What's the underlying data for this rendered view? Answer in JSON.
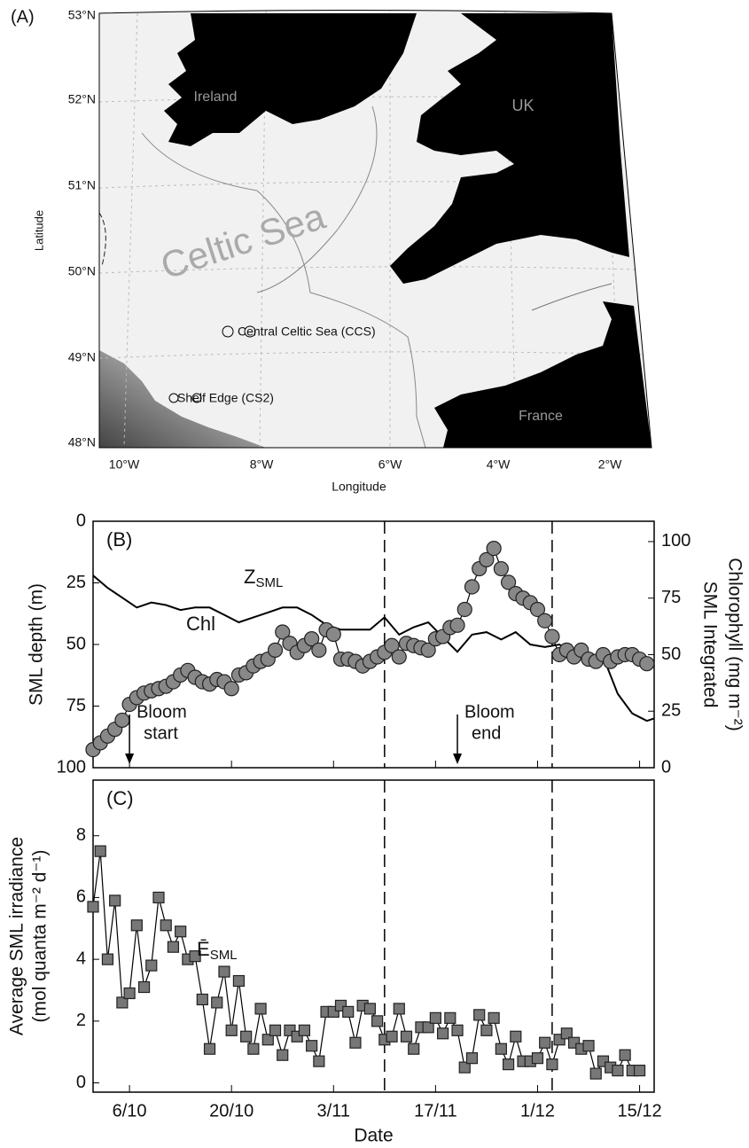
{
  "map": {
    "panel_label": "(A)",
    "ylabel": "Latitude",
    "xlabel": "Longitude",
    "lat_labels": [
      "53°N",
      "52°N",
      "51°N",
      "50°N",
      "49°N",
      "48°N"
    ],
    "lon_labels": [
      "10°W",
      "8°W",
      "6°W",
      "4°W",
      "2°W"
    ],
    "places": [
      "Ireland",
      "UK",
      "France",
      "Celtic Sea"
    ],
    "stations": [
      "Central Celtic Sea (CCS)",
      "Shelf Edge (CS2)"
    ]
  },
  "chart_data": [
    {
      "type": "line",
      "panel_label": "(B)",
      "ylabel": "SML depth (m)",
      "y2label": [
        "SML Integrated",
        "Chlorophyll (mg m⁻²)"
      ],
      "xlim": [
        "1/10",
        "17/12"
      ],
      "xticks": [
        "6/10",
        "20/10",
        "3/11",
        "17/11",
        "1/12",
        "15/12"
      ],
      "show_xtick_labels": false,
      "ylim": [
        100,
        0
      ],
      "yticks": [
        0,
        25,
        50,
        75,
        100
      ],
      "y2lim": [
        0,
        109
      ],
      "y2ticks": [
        0,
        25,
        50,
        75,
        100
      ],
      "vlines": [
        "10/11",
        "3/12"
      ],
      "annotations": [
        {
          "x": "6/10",
          "text": [
            "Bloom",
            "start"
          ]
        },
        {
          "x": "20/11",
          "text": [
            "Bloom",
            "end"
          ]
        }
      ],
      "x": [
        "1/10",
        "2/10",
        "3/10",
        "4/10",
        "5/10",
        "6/10",
        "7/10",
        "8/10",
        "9/10",
        "10/10",
        "11/10",
        "12/10",
        "13/10",
        "14/10",
        "15/10",
        "16/10",
        "17/10",
        "18/10",
        "19/10",
        "20/10",
        "21/10",
        "22/10",
        "23/10",
        "24/10",
        "25/10",
        "26/10",
        "27/10",
        "28/10",
        "29/10",
        "30/10",
        "31/10",
        "1/11",
        "2/11",
        "3/11",
        "4/11",
        "5/11",
        "6/11",
        "7/11",
        "8/11",
        "9/11",
        "10/11",
        "11/11",
        "12/11",
        "13/11",
        "14/11",
        "15/11",
        "16/11",
        "17/11",
        "18/11",
        "19/11",
        "20/11",
        "21/11",
        "22/11",
        "23/11",
        "24/11",
        "25/11",
        "26/11",
        "27/11",
        "28/11",
        "29/11",
        "30/11",
        "1/12",
        "2/12",
        "3/12",
        "4/12",
        "5/12",
        "6/12",
        "7/12",
        "8/12",
        "9/12",
        "10/12",
        "11/12",
        "12/12",
        "13/12",
        "14/12",
        "15/12",
        "16/12"
      ],
      "series": [
        {
          "name": "Z",
          "subscript": "SML",
          "color": "#111111",
          "marker": "none",
          "x": [
            "1/10",
            "3/10",
            "5/10",
            "7/10",
            "9/10",
            "11/10",
            "13/10",
            "15/10",
            "17/10",
            "19/10",
            "21/10",
            "23/10",
            "25/10",
            "27/10",
            "29/10",
            "31/10",
            "2/11",
            "4/11",
            "6/11",
            "8/11",
            "10/11",
            "12/11",
            "14/11",
            "16/11",
            "18/11",
            "20/11",
            "22/11",
            "24/11",
            "26/11",
            "28/11",
            "30/11",
            "2/12",
            "4/12",
            "6/12",
            "8/12",
            "10/12",
            "12/12",
            "14/12",
            "16/12",
            "17/12"
          ],
          "values": [
            22,
            27,
            31,
            35,
            33,
            34,
            36,
            35,
            35,
            38,
            41,
            39,
            37,
            35,
            35,
            38,
            42,
            44,
            44,
            44,
            39,
            46,
            43,
            41,
            47,
            53,
            46,
            45,
            48,
            45,
            50,
            51,
            50,
            54,
            54,
            55,
            70,
            78,
            81,
            80
          ]
        },
        {
          "name": "Chl",
          "color": "#888888",
          "marker": "circle",
          "axis": "y2",
          "values": [
            8,
            11,
            14,
            17,
            21,
            28,
            31,
            33,
            34,
            35,
            36,
            38,
            41,
            43,
            40,
            38,
            37,
            39,
            38,
            35,
            41,
            42,
            45,
            47,
            48,
            52,
            60,
            55,
            51,
            54,
            57,
            52,
            61,
            59,
            48,
            48,
            47,
            45,
            47,
            49,
            51,
            54,
            49,
            55,
            54,
            53,
            52,
            57,
            58,
            62,
            63,
            70,
            80,
            88,
            92,
            97,
            88,
            82,
            77,
            75,
            73,
            70,
            65,
            58,
            50,
            52,
            49,
            52,
            48,
            47,
            50,
            47,
            49,
            50,
            50,
            48,
            46
          ]
        }
      ]
    },
    {
      "type": "line",
      "panel_label": "(C)",
      "ylabel": [
        "Average SML irradiance",
        "(mol quanta m⁻² d⁻¹)"
      ],
      "xlabel": "Date",
      "xlim": [
        "1/10",
        "17/12"
      ],
      "xticks": [
        "6/10",
        "20/10",
        "3/11",
        "17/11",
        "1/12",
        "15/12"
      ],
      "show_xtick_labels": true,
      "ylim": [
        -0.3,
        9.8
      ],
      "yticks": [
        0,
        2,
        4,
        6,
        8
      ],
      "vlines": [
        "10/11",
        "3/12"
      ],
      "x": [
        "1/10",
        "2/10",
        "3/10",
        "4/10",
        "5/10",
        "6/10",
        "7/10",
        "8/10",
        "9/10",
        "10/10",
        "11/10",
        "12/10",
        "13/10",
        "14/10",
        "15/10",
        "16/10",
        "17/10",
        "18/10",
        "19/10",
        "20/10",
        "21/10",
        "22/10",
        "23/10",
        "24/10",
        "25/10",
        "26/10",
        "27/10",
        "28/10",
        "29/10",
        "30/10",
        "31/10",
        "1/11",
        "2/11",
        "3/11",
        "4/11",
        "5/11",
        "6/11",
        "7/11",
        "8/11",
        "9/11",
        "10/11",
        "11/11",
        "12/11",
        "13/11",
        "14/11",
        "15/11",
        "16/11",
        "17/11",
        "18/11",
        "19/11",
        "20/11",
        "21/11",
        "22/11",
        "23/11",
        "24/11",
        "25/11",
        "26/11",
        "27/11",
        "28/11",
        "29/11",
        "30/11",
        "1/12",
        "2/12",
        "3/12",
        "4/12",
        "5/12",
        "6/12",
        "7/12",
        "8/12",
        "9/12",
        "10/12",
        "11/12",
        "12/12",
        "13/12",
        "14/12",
        "15/12"
      ],
      "series": [
        {
          "name": "Ē",
          "subscript": "SML",
          "color": "#777777",
          "marker": "square",
          "values": [
            5.7,
            7.5,
            4.0,
            5.9,
            2.6,
            2.9,
            5.1,
            3.1,
            3.8,
            6.0,
            5.1,
            4.4,
            4.9,
            4.0,
            4.1,
            2.7,
            1.1,
            2.6,
            3.6,
            1.7,
            3.3,
            1.5,
            1.1,
            2.4,
            1.4,
            1.7,
            0.9,
            1.7,
            1.5,
            1.7,
            1.2,
            0.7,
            2.3,
            2.3,
            2.5,
            2.3,
            1.3,
            2.5,
            2.4,
            2.0,
            1.4,
            1.5,
            2.4,
            1.5,
            1.1,
            1.8,
            1.8,
            2.1,
            1.6,
            2.1,
            1.7,
            0.5,
            0.8,
            2.2,
            1.7,
            2.1,
            1.1,
            0.6,
            1.5,
            0.7,
            0.7,
            0.8,
            1.3,
            0.6,
            1.4,
            1.6,
            1.3,
            1.1,
            1.2,
            0.3,
            0.7,
            0.5,
            0.4,
            0.9,
            0.4,
            0.4
          ]
        }
      ]
    }
  ]
}
